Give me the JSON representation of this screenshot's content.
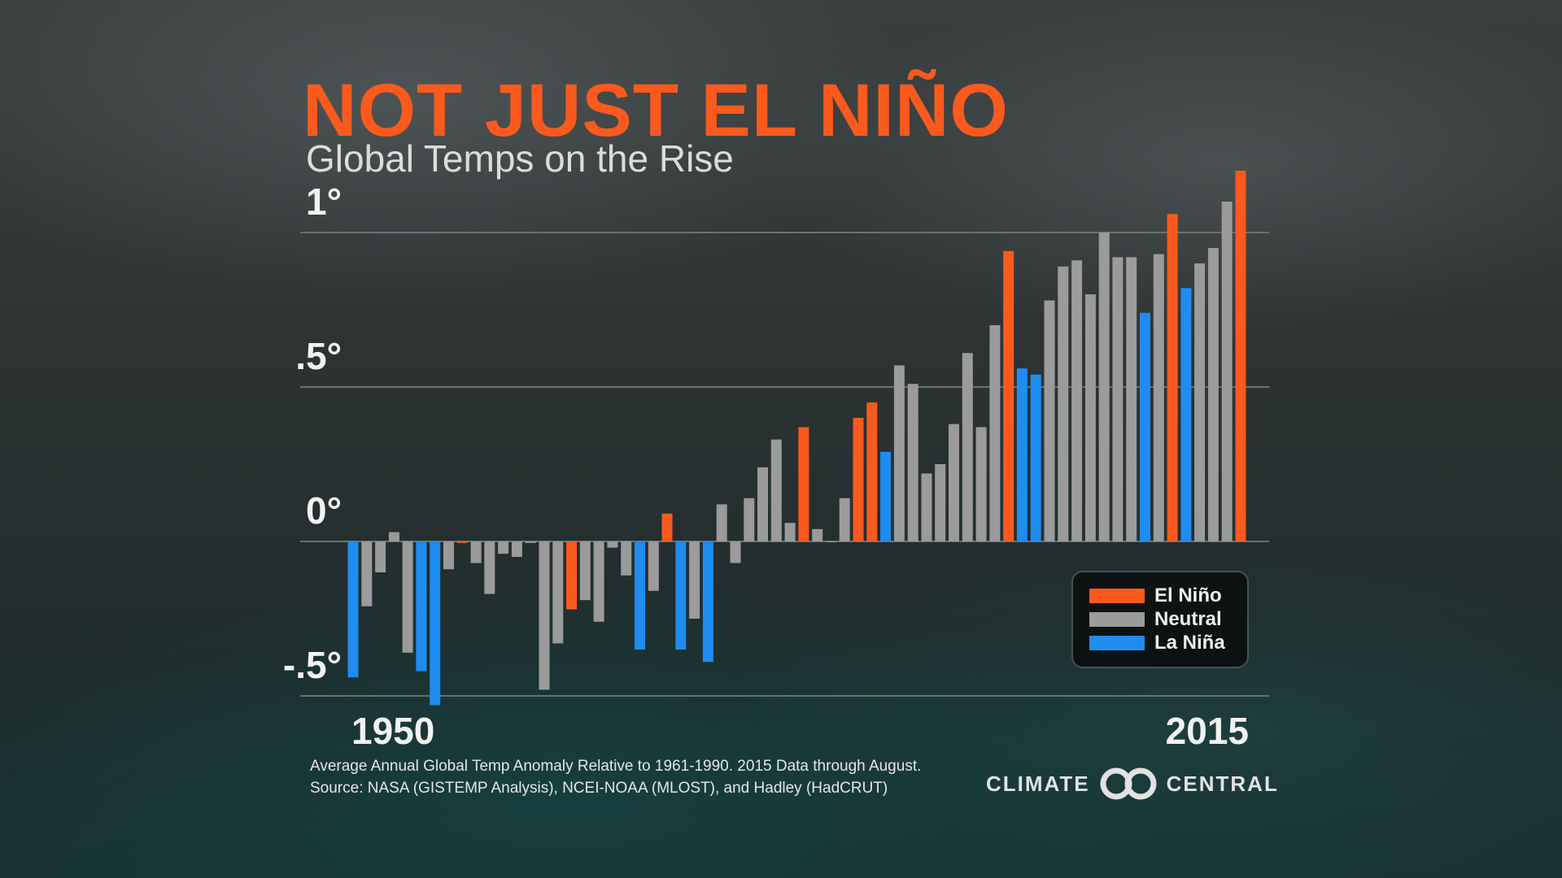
{
  "title": "NOT JUST EL NIÑO",
  "subtitle": "Global Temps on the Rise",
  "colors": {
    "el_nino": "#fa5a1e",
    "neutral": "#9b9b9b",
    "la_nina": "#1e8cf0",
    "gridline": "#6b7070",
    "text": "#f2f2f2"
  },
  "chart_data": {
    "type": "bar",
    "title": "Global Temps on the Rise",
    "xlabel": "",
    "ylabel": "",
    "ylim": [
      -0.5,
      1.1
    ],
    "y_ticks": [
      {
        "value": 1,
        "label": "1°"
      },
      {
        "value": 0.5,
        "label": ".5°"
      },
      {
        "value": 0,
        "label": "0°"
      },
      {
        "value": -0.5,
        "label": "-.5°"
      }
    ],
    "x_labels": {
      "start": "1950",
      "end": "2015"
    },
    "grid": true,
    "legend_position": "bottom-right",
    "legend": [
      {
        "key": "E",
        "label": "El Niño",
        "color": "#fa5a1e"
      },
      {
        "key": "N",
        "label": "Neutral",
        "color": "#9b9b9b"
      },
      {
        "key": "L",
        "label": "La Niña",
        "color": "#1e8cf0"
      }
    ],
    "x": [
      1950,
      1951,
      1952,
      1953,
      1954,
      1955,
      1956,
      1957,
      1958,
      1959,
      1960,
      1961,
      1962,
      1963,
      1964,
      1965,
      1966,
      1967,
      1968,
      1969,
      1970,
      1971,
      1972,
      1973,
      1974,
      1975,
      1976,
      1977,
      1978,
      1979,
      1980,
      1981,
      1982,
      1983,
      1984,
      1985,
      1986,
      1987,
      1988,
      1989,
      1990,
      1991,
      1992,
      1993,
      1994,
      1995,
      1996,
      1997,
      1998,
      1999,
      2000,
      2001,
      2002,
      2003,
      2004,
      2005,
      2006,
      2007,
      2008,
      2009,
      2010,
      2011,
      2012,
      2013,
      2014,
      2015
    ],
    "values": [
      -0.44,
      -0.21,
      -0.1,
      0.03,
      -0.36,
      -0.42,
      -0.53,
      -0.09,
      -0.005,
      -0.07,
      -0.17,
      -0.04,
      -0.05,
      -0.005,
      -0.48,
      -0.33,
      -0.22,
      -0.19,
      -0.26,
      -0.02,
      -0.11,
      -0.35,
      -0.16,
      0.09,
      -0.35,
      -0.25,
      -0.39,
      0.12,
      -0.07,
      0.14,
      0.24,
      0.33,
      0.06,
      0.37,
      0.04,
      0.0,
      0.14,
      0.4,
      0.45,
      0.29,
      0.57,
      0.51,
      0.22,
      0.25,
      0.38,
      0.61,
      0.37,
      0.7,
      0.94,
      0.56,
      0.54,
      0.78,
      0.89,
      0.91,
      0.8,
      1.0,
      0.92,
      0.92,
      0.74,
      0.93,
      1.06,
      0.82,
      0.9,
      0.95,
      1.1,
      1.2
    ],
    "phases": [
      "L",
      "N",
      "N",
      "N",
      "N",
      "L",
      "L",
      "N",
      "E",
      "N",
      "N",
      "N",
      "N",
      "N",
      "N",
      "N",
      "E",
      "N",
      "N",
      "N",
      "N",
      "L",
      "N",
      "E",
      "L",
      "N",
      "L",
      "N",
      "N",
      "N",
      "N",
      "N",
      "N",
      "E",
      "N",
      "N",
      "N",
      "E",
      "E",
      "L",
      "N",
      "N",
      "N",
      "N",
      "N",
      "N",
      "N",
      "N",
      "E",
      "L",
      "L",
      "N",
      "N",
      "N",
      "N",
      "N",
      "N",
      "N",
      "L",
      "N",
      "E",
      "L",
      "N",
      "N",
      "N",
      "E"
    ]
  },
  "footnote": {
    "line1": "Average Annual Global Temp Anomaly Relative to 1961-1990. 2015 Data through August.",
    "line2": "Source: NASA (GISTEMP Analysis), NCEI-NOAA (MLOST), and Hadley (HadCRUT)"
  },
  "logo": {
    "left_text": "CLIMATE",
    "right_text": "CENTRAL",
    "icon": "infinity-loop-icon"
  }
}
